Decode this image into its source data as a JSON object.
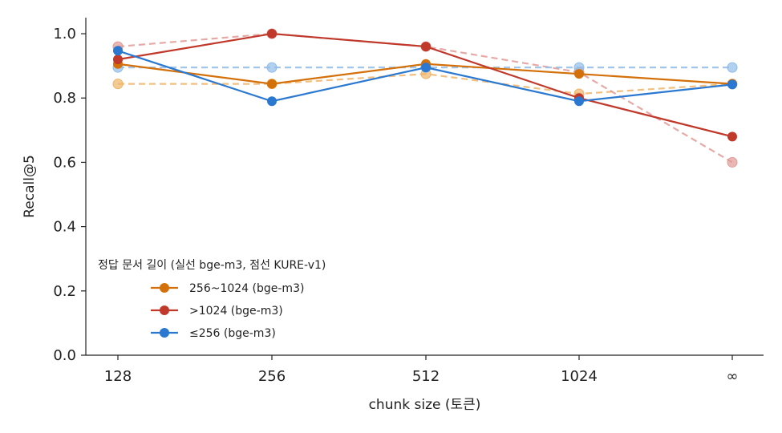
{
  "chart_data": {
    "type": "line",
    "title": "",
    "xlabel": "chunk size (토큰)",
    "ylabel": "Recall@5",
    "categories": [
      "128",
      "256",
      "512",
      "1024",
      "∞"
    ],
    "ylim": [
      0,
      1.05
    ],
    "yticks": [
      0.0,
      0.2,
      0.4,
      0.6,
      0.8,
      1.0
    ],
    "ytick_labels": [
      "0.0",
      "0.2",
      "0.4",
      "0.6",
      "0.8",
      "1.0"
    ],
    "grid": false,
    "legend": {
      "placement": "lower-left",
      "title": "정답 문서 길이 (실선 bge-m3, 점선 KURE-v1)"
    },
    "series": [
      {
        "name": "256~1024 (bge-m3)",
        "model": "bge-m3",
        "color": "#d4700a",
        "style": "solid",
        "values": [
          0.906,
          0.844,
          0.906,
          0.875,
          0.844
        ],
        "in_legend": true
      },
      {
        "name": ">1024 (bge-m3)",
        "model": "bge-m3",
        "color": "#c0392b",
        "style": "solid",
        "values": [
          0.92,
          1.0,
          0.96,
          0.8,
          0.68
        ],
        "in_legend": true
      },
      {
        "name": "≤256 (bge-m3)",
        "model": "bge-m3",
        "color": "#2a78d0",
        "style": "solid",
        "values": [
          0.947,
          0.79,
          0.895,
          0.79,
          0.842
        ],
        "in_legend": true
      },
      {
        "model": "KURE-v1",
        "color": "#f0b468",
        "style": "dashed",
        "values": [
          0.844,
          0.844,
          0.875,
          0.813,
          0.844
        ],
        "in_legend": false
      },
      {
        "model": "KURE-v1",
        "color": "#e09a96",
        "style": "dashed",
        "values": [
          0.96,
          1.0,
          0.96,
          0.88,
          0.6
        ],
        "in_legend": false
      },
      {
        "model": "KURE-v1",
        "color": "#92bce8",
        "style": "dashed",
        "values": [
          0.895,
          0.895,
          0.895,
          0.895,
          0.895
        ],
        "in_legend": false
      }
    ]
  }
}
